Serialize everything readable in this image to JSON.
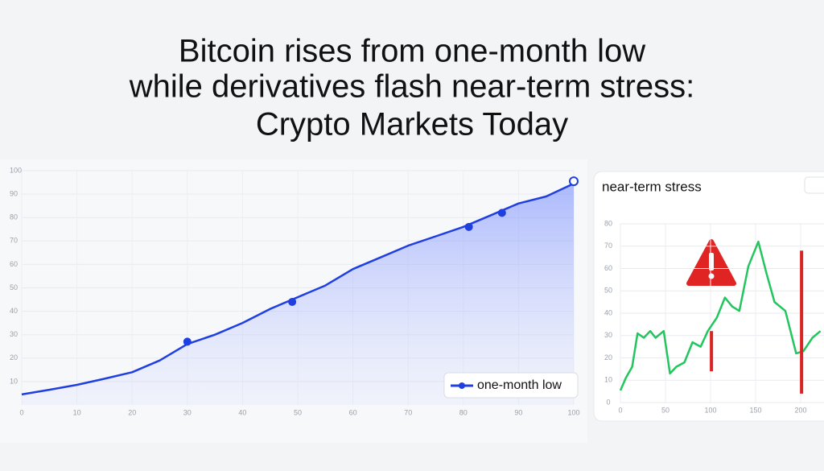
{
  "title_lines": [
    "Bitcoin rises from one-month low",
    "while derivatives flash near-term stress:",
    "Crypto Markets Today"
  ],
  "chart_data": [
    {
      "type": "area",
      "grid": true,
      "x": [
        0,
        5,
        10,
        15,
        20,
        25,
        30,
        35,
        40,
        45,
        50,
        55,
        60,
        65,
        70,
        75,
        80,
        85,
        90,
        95,
        100
      ],
      "series": [
        {
          "name": "one-month low",
          "color": "#1f3fe0",
          "values": [
            4.5,
            6.5,
            8.6,
            11.2,
            14,
            19,
            26,
            30,
            35,
            41,
            46,
            51,
            58,
            63,
            68,
            72,
            76,
            81,
            86,
            89,
            94.5
          ]
        }
      ],
      "markers": {
        "x": [
          30,
          49,
          81,
          87,
          100
        ],
        "values": [
          27,
          44,
          76,
          82,
          95.5
        ]
      },
      "xlim": [
        0,
        100
      ],
      "xticks": [
        0,
        10,
        20,
        30,
        40,
        50,
        60,
        70,
        80,
        90,
        100
      ],
      "ylim": [
        0,
        100
      ],
      "yticks": [
        10,
        20,
        30,
        40,
        50,
        60,
        70,
        80,
        90,
        100
      ],
      "legend": "bottom-right"
    },
    {
      "type": "line",
      "title": "near-term stress",
      "grid": true,
      "x": [
        0,
        6,
        13,
        19,
        26,
        33,
        39,
        48,
        55,
        62,
        71,
        80,
        89,
        97,
        107,
        116,
        124,
        132,
        142,
        153,
        162,
        171,
        183,
        195,
        203,
        213,
        222
      ],
      "series": [
        {
          "color": "#22c55e",
          "values": [
            5.4,
            11,
            16,
            31,
            29,
            32,
            29,
            32,
            13,
            16,
            18,
            27,
            25,
            32,
            38,
            47,
            43,
            41,
            61,
            72,
            58,
            45,
            41,
            22,
            23,
            29,
            32
          ]
        }
      ],
      "events": {
        "x": [
          101,
          201
        ],
        "low": [
          14,
          4
        ],
        "high": [
          32,
          68
        ],
        "color": "#dd2222"
      },
      "xlim": [
        0,
        230
      ],
      "xticks": [
        0,
        50,
        100,
        150,
        200
      ],
      "ylim": [
        0,
        80
      ],
      "yticks": [
        0,
        10,
        20,
        30,
        40,
        50,
        60,
        70,
        80
      ]
    }
  ]
}
